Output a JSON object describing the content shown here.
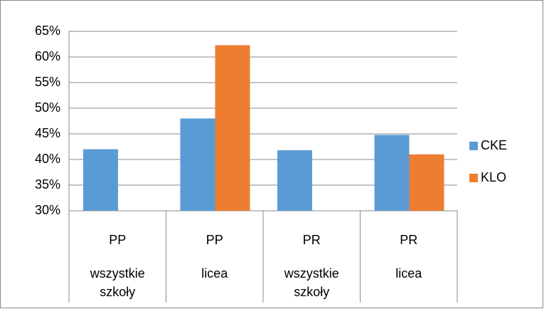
{
  "chart_data": {
    "type": "bar",
    "categories": [
      [
        "PP",
        "wszystkie szkoły"
      ],
      [
        "PP",
        "licea"
      ],
      [
        "PR",
        "wszystkie szkoły"
      ],
      [
        "PR",
        "licea"
      ]
    ],
    "series": [
      {
        "name": "CKE",
        "color": "#5b9bd5",
        "values": [
          42,
          48,
          41.8,
          44.8
        ]
      },
      {
        "name": "KLO",
        "color": "#ed7d31",
        "values": [
          null,
          62.3,
          null,
          41
        ]
      }
    ],
    "ylim": [
      30,
      65
    ],
    "yticks": [
      {
        "value": 30,
        "label": "30%"
      },
      {
        "value": 35,
        "label": "35%"
      },
      {
        "value": 40,
        "label": "40%"
      },
      {
        "value": 45,
        "label": "45%"
      },
      {
        "value": 50,
        "label": "50%"
      },
      {
        "value": 55,
        "label": "55%"
      },
      {
        "value": 60,
        "label": "60%"
      },
      {
        "value": 65,
        "label": "65%"
      }
    ],
    "grid": true,
    "legend": "right"
  }
}
